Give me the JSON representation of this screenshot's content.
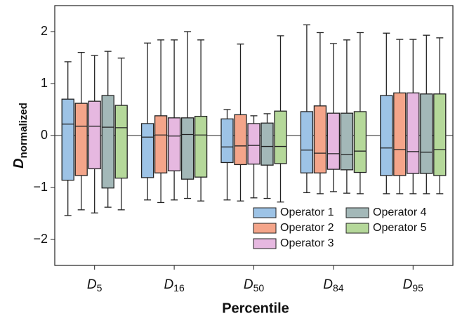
{
  "chart_data": {
    "type": "boxplot",
    "y_label": {
      "symbol": "D",
      "subscript": "normalized"
    },
    "x_label": "Percentile",
    "categories": [
      "D5",
      "D16",
      "D50",
      "D84",
      "D95"
    ],
    "ylim": [
      -2.5,
      2.5
    ],
    "yticks": [
      {
        "value": -2,
        "label": "−2"
      },
      {
        "value": -1,
        "label": "−1"
      },
      0,
      1,
      2
    ],
    "zero_line": true,
    "legend": {
      "loc": "lower right",
      "ncol": 2
    },
    "series": [
      {
        "name": "Operator 1",
        "color": "#9dc3e6",
        "values": [
          {
            "whislo": -1.54,
            "q1": -0.86,
            "med": 0.22,
            "q3": 0.7,
            "whishi": 1.42
          },
          {
            "whislo": -1.24,
            "q1": -0.81,
            "med": -0.03,
            "q3": 0.23,
            "whishi": 1.78
          },
          {
            "whislo": -1.24,
            "q1": -0.52,
            "med": -0.22,
            "q3": 0.32,
            "whishi": 0.5
          },
          {
            "whislo": -1.1,
            "q1": -0.72,
            "med": -0.28,
            "q3": 0.46,
            "whishi": 2.13
          },
          {
            "whislo": -1.12,
            "q1": -0.77,
            "med": -0.24,
            "q3": 0.77,
            "whishi": 1.97
          }
        ]
      },
      {
        "name": "Operator 2",
        "color": "#f4a58a",
        "values": [
          {
            "whislo": -1.43,
            "q1": -0.77,
            "med": 0.18,
            "q3": 0.62,
            "whishi": 1.6
          },
          {
            "whislo": -1.29,
            "q1": -0.72,
            "med": 0.01,
            "q3": 0.38,
            "whishi": 1.84
          },
          {
            "whislo": -1.26,
            "q1": -0.56,
            "med": -0.2,
            "q3": 0.4,
            "whishi": 1.76
          },
          {
            "whislo": -1.12,
            "q1": -0.72,
            "med": -0.34,
            "q3": 0.57,
            "whishi": 1.98
          },
          {
            "whislo": -1.12,
            "q1": -0.77,
            "med": -0.27,
            "q3": 0.82,
            "whishi": 1.85
          }
        ]
      },
      {
        "name": "Operator 3",
        "color": "#e6b8e0",
        "values": [
          {
            "whislo": -1.49,
            "q1": -0.64,
            "med": 0.18,
            "q3": 0.66,
            "whishi": 1.54
          },
          {
            "whislo": -1.24,
            "q1": -0.68,
            "med": -0.01,
            "q3": 0.34,
            "whishi": 1.84
          },
          {
            "whislo": -1.2,
            "q1": -0.55,
            "med": -0.19,
            "q3": 0.23,
            "whishi": 0.38
          },
          {
            "whislo": -1.08,
            "q1": -0.65,
            "med": -0.35,
            "q3": 0.43,
            "whishi": 1.77
          },
          {
            "whislo": -1.12,
            "q1": -0.73,
            "med": -0.31,
            "q3": 0.82,
            "whishi": 1.85
          }
        ]
      },
      {
        "name": "Operator 4",
        "color": "#a3b8b8",
        "values": [
          {
            "whislo": -1.38,
            "q1": -1.01,
            "med": 0.16,
            "q3": 0.77,
            "whishi": 1.62
          },
          {
            "whislo": -1.21,
            "q1": -0.84,
            "med": 0.02,
            "q3": 0.34,
            "whishi": 2.0
          },
          {
            "whislo": -1.21,
            "q1": -0.57,
            "med": -0.21,
            "q3": 0.24,
            "whishi": 0.42
          },
          {
            "whislo": -1.11,
            "q1": -0.66,
            "med": -0.37,
            "q3": 0.43,
            "whishi": 1.84
          },
          {
            "whislo": -1.12,
            "q1": -0.73,
            "med": -0.32,
            "q3": 0.8,
            "whishi": 1.93
          }
        ]
      },
      {
        "name": "Operator 5",
        "color": "#b5d89a",
        "values": [
          {
            "whislo": -1.43,
            "q1": -0.82,
            "med": 0.15,
            "q3": 0.58,
            "whishi": 1.49
          },
          {
            "whislo": -1.26,
            "q1": -0.8,
            "med": 0.01,
            "q3": 0.37,
            "whishi": 1.84
          },
          {
            "whislo": -1.28,
            "q1": -0.54,
            "med": -0.21,
            "q3": 0.47,
            "whishi": 1.92
          },
          {
            "whislo": -1.12,
            "q1": -0.71,
            "med": -0.3,
            "q3": 0.46,
            "whishi": 1.98
          },
          {
            "whislo": -1.12,
            "q1": -0.77,
            "med": -0.27,
            "q3": 0.8,
            "whishi": 1.88
          }
        ]
      }
    ]
  }
}
